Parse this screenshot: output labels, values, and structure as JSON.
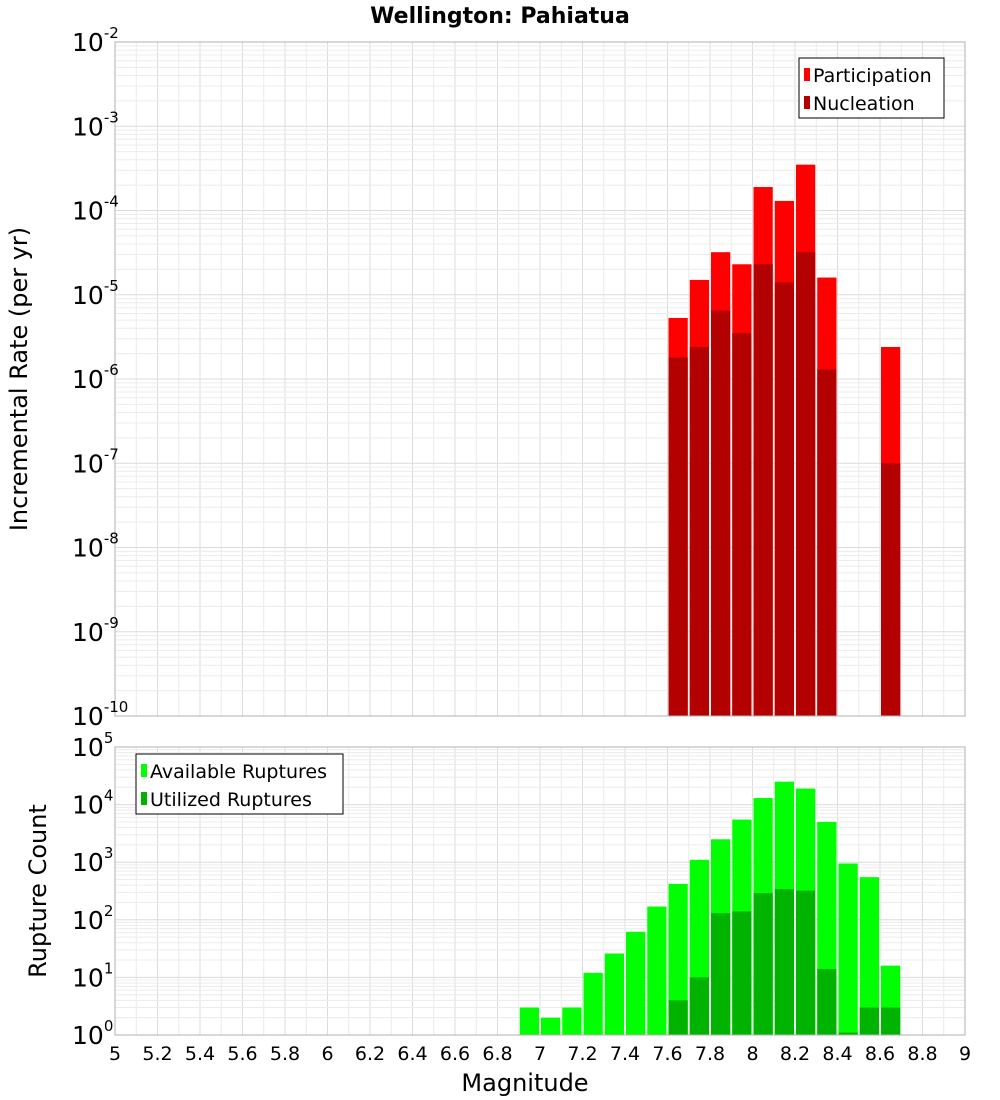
{
  "chart_data": [
    {
      "type": "bar",
      "title": "Wellington: Pahiatua",
      "xlabel": "",
      "ylabel": "Incremental Rate (per yr)",
      "yscale": "log",
      "ylim_exp": [
        -10,
        -2
      ],
      "xlim": [
        5,
        9
      ],
      "legend_position": "top-right",
      "series": [
        {
          "name": "Participation",
          "color": "#ff0000",
          "x": [
            7.65,
            7.75,
            7.85,
            7.95,
            8.05,
            8.15,
            8.25,
            8.35,
            8.65
          ],
          "values": [
            5.3e-06,
            1.5e-05,
            3.2e-05,
            2.3e-05,
            0.00019,
            0.00013,
            0.00035,
            1.6e-05,
            2.4e-06
          ]
        },
        {
          "name": "Nucleation",
          "color": "#b30000",
          "x": [
            7.65,
            7.75,
            7.85,
            7.95,
            8.05,
            8.15,
            8.25,
            8.35,
            8.65
          ],
          "values": [
            1.8e-06,
            2.4e-06,
            6.5e-06,
            3.5e-06,
            2.3e-05,
            1.4e-05,
            3.2e-05,
            1.3e-06,
            1e-07
          ]
        }
      ]
    },
    {
      "type": "bar",
      "title": "",
      "xlabel": "Magnitude",
      "ylabel": "Rupture Count",
      "yscale": "log",
      "ylim_exp": [
        0,
        5
      ],
      "xlim": [
        5,
        9
      ],
      "legend_position": "top-left",
      "x_ticks": [
        "5",
        "5.2",
        "5.4",
        "5.6",
        "5.8",
        "6",
        "6.2",
        "6.4",
        "6.6",
        "6.8",
        "7",
        "7.2",
        "7.4",
        "7.6",
        "7.8",
        "8",
        "8.2",
        "8.4",
        "8.6",
        "8.8",
        "9"
      ],
      "series": [
        {
          "name": "Available Ruptures",
          "color": "#00ff00",
          "x": [
            6.95,
            7.05,
            7.15,
            7.25,
            7.35,
            7.45,
            7.55,
            7.65,
            7.75,
            7.85,
            7.95,
            8.05,
            8.15,
            8.25,
            8.35,
            8.45,
            8.55,
            8.65
          ],
          "values": [
            3,
            2,
            3,
            12,
            26,
            62,
            170,
            420,
            1100,
            2500,
            5500,
            13000,
            25000,
            19000,
            5000,
            950,
            550,
            16
          ]
        },
        {
          "name": "Utilized Ruptures",
          "color": "#00b300",
          "x": [
            7.65,
            7.75,
            7.85,
            7.95,
            8.05,
            8.15,
            8.25,
            8.35,
            8.45,
            8.55,
            8.65
          ],
          "values": [
            4,
            10,
            130,
            140,
            290,
            340,
            320,
            14,
            1.1,
            3,
            3
          ]
        }
      ]
    }
  ]
}
